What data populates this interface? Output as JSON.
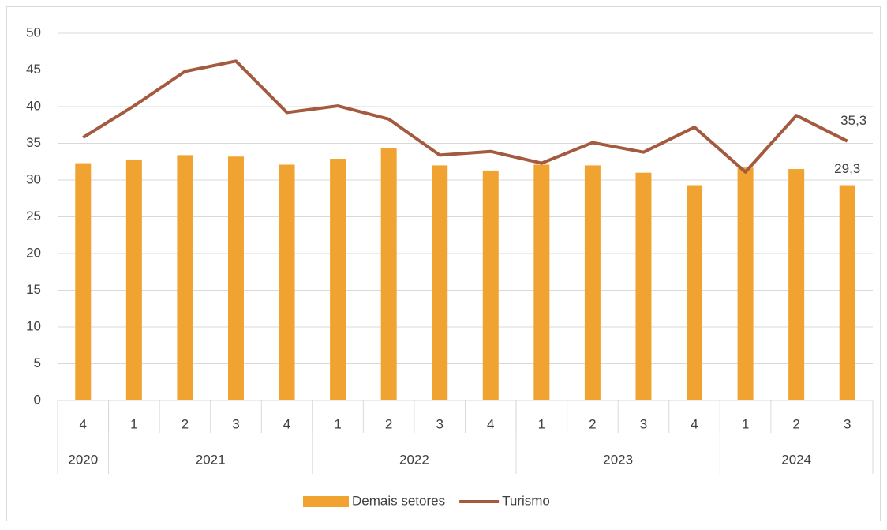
{
  "chart_data": {
    "type": "bar_line",
    "categories": [
      "4",
      "1",
      "2",
      "3",
      "4",
      "1",
      "2",
      "3",
      "4",
      "1",
      "2",
      "3",
      "4",
      "1",
      "2",
      "3"
    ],
    "years": [
      {
        "name": "2020",
        "span": 1
      },
      {
        "name": "2021",
        "span": 4
      },
      {
        "name": "2022",
        "span": 4
      },
      {
        "name": "2023",
        "span": 4
      },
      {
        "name": "2024",
        "span": 3
      }
    ],
    "series": [
      {
        "name": "Demais setores",
        "type": "bar",
        "color": "#f0a330",
        "values": [
          32.3,
          32.8,
          33.4,
          33.2,
          32.1,
          32.9,
          34.4,
          32.0,
          31.3,
          32.1,
          32.0,
          31.0,
          29.3,
          31.7,
          31.5,
          29.3
        ],
        "value_labels": [
          null,
          null,
          null,
          null,
          null,
          null,
          null,
          null,
          null,
          null,
          null,
          null,
          null,
          null,
          null,
          "29,3"
        ]
      },
      {
        "name": "Turismo",
        "type": "line",
        "color": "#a35a3e",
        "values": [
          35.8,
          40.1,
          44.8,
          46.2,
          39.2,
          40.1,
          38.3,
          33.4,
          33.9,
          32.3,
          35.1,
          33.8,
          37.2,
          31.1,
          38.8,
          35.3
        ],
        "value_labels": [
          null,
          null,
          null,
          null,
          null,
          null,
          null,
          null,
          null,
          null,
          null,
          null,
          null,
          null,
          null,
          "35,3"
        ]
      }
    ],
    "ylim": [
      0,
      50
    ],
    "yticks": [
      0,
      5,
      10,
      15,
      20,
      25,
      30,
      35,
      40,
      45,
      50
    ],
    "grid": true,
    "legend": "bottom"
  }
}
